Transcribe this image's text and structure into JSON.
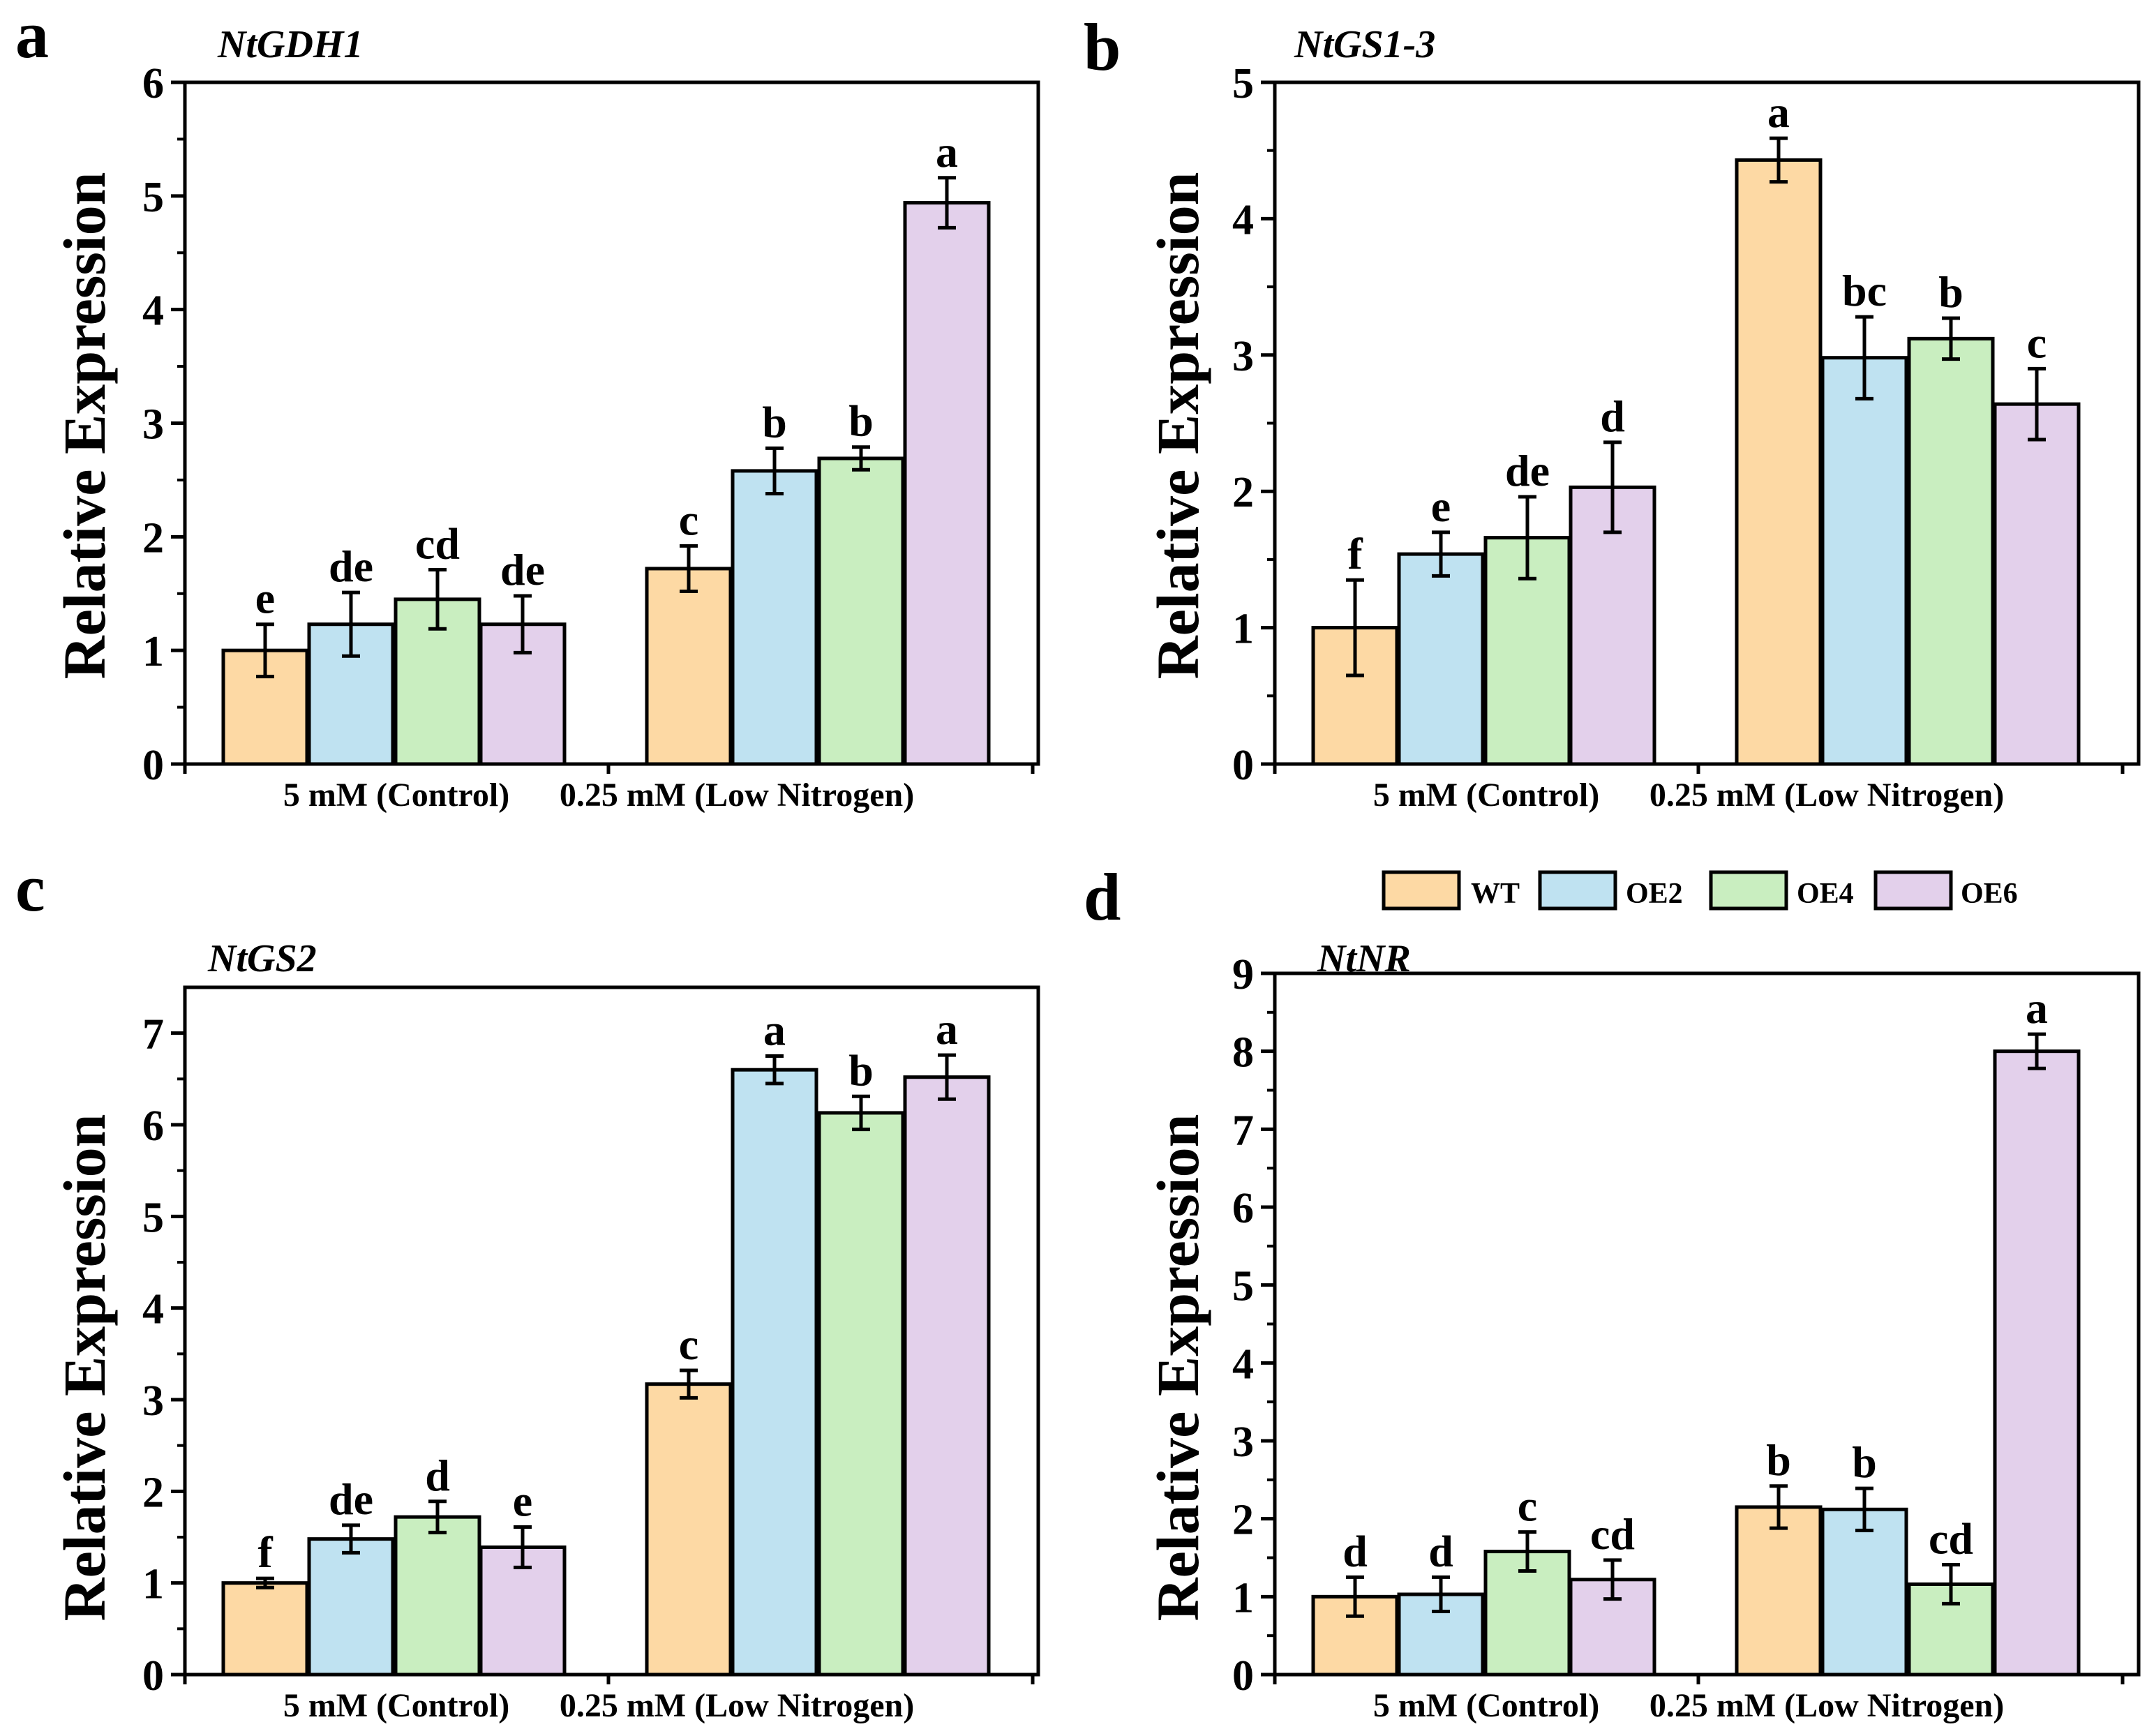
{
  "legend": {
    "entries": [
      {
        "name": "WT",
        "color": "#FDD9A4"
      },
      {
        "name": "OE2",
        "color": "#BFE2F1"
      },
      {
        "name": "OE4",
        "color": "#C9EEC0"
      },
      {
        "name": "OE6",
        "color": "#E3D0EB"
      }
    ]
  },
  "chart_data": [
    {
      "type": "bar",
      "panel": "a",
      "title": "NtGDH1",
      "ylabel": "Relative Expression",
      "xlabel": "",
      "ylim": [
        0,
        6
      ],
      "yticks": [
        0,
        1,
        2,
        3,
        4,
        5,
        6
      ],
      "categories": [
        "5 mM (Control)",
        "0.25 mM (Low Nitrogen)"
      ],
      "series": [
        {
          "name": "WT",
          "color": "#FDD9A4",
          "values": [
            1.0,
            1.72
          ],
          "errors": [
            0.23,
            0.2
          ],
          "labels": [
            "e",
            "c"
          ]
        },
        {
          "name": "OE2",
          "color": "#BFE2F1",
          "values": [
            1.23,
            2.58
          ],
          "errors": [
            0.28,
            0.2
          ],
          "labels": [
            "de",
            "b"
          ]
        },
        {
          "name": "OE4",
          "color": "#C9EEC0",
          "values": [
            1.45,
            2.69
          ],
          "errors": [
            0.26,
            0.1
          ],
          "labels": [
            "cd",
            "b"
          ]
        },
        {
          "name": "OE6",
          "color": "#E3D0EB",
          "values": [
            1.23,
            4.94
          ],
          "errors": [
            0.25,
            0.22
          ],
          "labels": [
            "de",
            "a"
          ]
        }
      ]
    },
    {
      "type": "bar",
      "panel": "b",
      "title": "NtGS1-3",
      "ylabel": "Relative Expression",
      "xlabel": "",
      "ylim": [
        0,
        5
      ],
      "yticks": [
        0,
        1,
        2,
        3,
        4,
        5
      ],
      "categories": [
        "5 mM (Control)",
        "0.25 mM (Low Nitrogen)"
      ],
      "series": [
        {
          "name": "WT",
          "color": "#FDD9A4",
          "values": [
            1.0,
            4.43
          ],
          "errors": [
            0.35,
            0.16
          ],
          "labels": [
            "f",
            "a"
          ]
        },
        {
          "name": "OE2",
          "color": "#BFE2F1",
          "values": [
            1.54,
            2.98
          ],
          "errors": [
            0.16,
            0.3
          ],
          "labels": [
            "e",
            "bc"
          ]
        },
        {
          "name": "OE4",
          "color": "#C9EEC0",
          "values": [
            1.66,
            3.12
          ],
          "errors": [
            0.3,
            0.15
          ],
          "labels": [
            "de",
            "b"
          ]
        },
        {
          "name": "OE6",
          "color": "#E3D0EB",
          "values": [
            2.03,
            2.64
          ],
          "errors": [
            0.33,
            0.26
          ],
          "labels": [
            "d",
            "c"
          ]
        }
      ]
    },
    {
      "type": "bar",
      "panel": "c",
      "title": "NtGS2",
      "ylabel": "Relative Expression",
      "xlabel": "",
      "ylim": [
        0,
        7.5
      ],
      "yticks": [
        0,
        1,
        2,
        3,
        4,
        5,
        6,
        7
      ],
      "categories": [
        "5 mM (Control)",
        "0.25 mM (Low Nitrogen)"
      ],
      "series": [
        {
          "name": "WT",
          "color": "#FDD9A4",
          "values": [
            1.0,
            3.17
          ],
          "errors": [
            0.05,
            0.15
          ],
          "labels": [
            "f",
            "c"
          ]
        },
        {
          "name": "OE2",
          "color": "#BFE2F1",
          "values": [
            1.48,
            6.6
          ],
          "errors": [
            0.15,
            0.15
          ],
          "labels": [
            "de",
            "a"
          ]
        },
        {
          "name": "OE4",
          "color": "#C9EEC0",
          "values": [
            1.72,
            6.13
          ],
          "errors": [
            0.17,
            0.18
          ],
          "labels": [
            "d",
            "b"
          ]
        },
        {
          "name": "OE6",
          "color": "#E3D0EB",
          "values": [
            1.39,
            6.52
          ],
          "errors": [
            0.22,
            0.24
          ],
          "labels": [
            "e",
            "a"
          ]
        }
      ]
    },
    {
      "type": "bar",
      "panel": "d",
      "title": "NtNR",
      "ylabel": "Relative Expression",
      "xlabel": "",
      "ylim": [
        0,
        9
      ],
      "yticks": [
        0,
        1,
        2,
        3,
        4,
        5,
        6,
        7,
        8,
        9
      ],
      "categories": [
        "5 mM (Control)",
        "0.25 mM (Low Nitrogen)"
      ],
      "series": [
        {
          "name": "WT",
          "color": "#FDD9A4",
          "values": [
            1.0,
            2.15
          ],
          "errors": [
            0.25,
            0.27
          ],
          "labels": [
            "d",
            "b"
          ]
        },
        {
          "name": "OE2",
          "color": "#BFE2F1",
          "values": [
            1.03,
            2.12
          ],
          "errors": [
            0.22,
            0.27
          ],
          "labels": [
            "d",
            "b"
          ]
        },
        {
          "name": "OE4",
          "color": "#C9EEC0",
          "values": [
            1.58,
            1.16
          ],
          "errors": [
            0.25,
            0.25
          ],
          "labels": [
            "c",
            "cd"
          ]
        },
        {
          "name": "OE6",
          "color": "#E3D0EB",
          "values": [
            1.22,
            8.0
          ],
          "errors": [
            0.25,
            0.22
          ],
          "labels": [
            "cd",
            "a"
          ]
        }
      ]
    }
  ]
}
